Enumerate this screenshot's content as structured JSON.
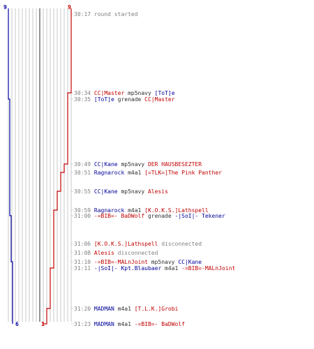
{
  "colors": {
    "blue_team": "#0000a0",
    "red_team": "#c00000",
    "grid": "#c8c8c8",
    "time": "#808080"
  },
  "counts": {
    "blue_start": "9",
    "red_start": "9",
    "blue_end": "6",
    "red_end": "1"
  },
  "events": [
    {
      "time": "30:17",
      "parts": [
        {
          "t": "round started",
          "c": "time"
        }
      ]
    },
    {
      "time": "30:34",
      "parts": [
        {
          "t": "CC|Master",
          "c": "red"
        },
        {
          "t": " mp5navy ",
          "c": "plain"
        },
        {
          "t": "[ToT]e",
          "c": "blue"
        }
      ]
    },
    {
      "time": "30:35",
      "parts": [
        {
          "t": "[ToT]e",
          "c": "blue"
        },
        {
          "t": " grenade ",
          "c": "plain"
        },
        {
          "t": "CC|Master",
          "c": "red"
        }
      ]
    },
    {
      "time": "30:49",
      "parts": [
        {
          "t": "CC|Kane",
          "c": "blue"
        },
        {
          "t": " mp5navy ",
          "c": "plain"
        },
        {
          "t": "DER HAUSBESEZTER",
          "c": "red"
        }
      ]
    },
    {
      "time": "30:51",
      "parts": [
        {
          "t": "Ragnarock",
          "c": "blue"
        },
        {
          "t": " m4a1 ",
          "c": "plain"
        },
        {
          "t": "[=TLK=]The Pink Panther",
          "c": "red"
        }
      ]
    },
    {
      "time": "30:55",
      "parts": [
        {
          "t": "CC|Kane",
          "c": "blue"
        },
        {
          "t": " mp5navy ",
          "c": "plain"
        },
        {
          "t": "Alesis",
          "c": "red"
        }
      ]
    },
    {
      "time": "30:59",
      "parts": [
        {
          "t": "Ragnarock",
          "c": "blue"
        },
        {
          "t": " m4a1 ",
          "c": "plain"
        },
        {
          "t": "[K.O.K.S.]Lathspell",
          "c": "red"
        }
      ]
    },
    {
      "time": "31:00",
      "parts": [
        {
          "t": "-=BIB=- BaDWolf",
          "c": "red"
        },
        {
          "t": " grenade ",
          "c": "plain"
        },
        {
          "t": "-|SoI|- Tekener",
          "c": "blue"
        }
      ]
    },
    {
      "time": "31:06",
      "parts": [
        {
          "t": "[K.O.K.S.]Lathspell",
          "c": "red"
        },
        {
          "t": " disconnected",
          "c": "time"
        }
      ]
    },
    {
      "time": "31:08",
      "parts": [
        {
          "t": "Alesis",
          "c": "red"
        },
        {
          "t": " disconnected",
          "c": "time"
        }
      ]
    },
    {
      "time": "31:10",
      "parts": [
        {
          "t": "-=BIB=-MALnJoint",
          "c": "red"
        },
        {
          "t": " mp5navy ",
          "c": "plain"
        },
        {
          "t": "CC|Kane",
          "c": "blue"
        }
      ]
    },
    {
      "time": "31:11",
      "parts": [
        {
          "t": "-|SoI|- Kpt.Blaubaer",
          "c": "blue"
        },
        {
          "t": " m4a1 ",
          "c": "plain"
        },
        {
          "t": "-=BIB=-MALnJoint",
          "c": "red"
        }
      ]
    },
    {
      "time": "31:20",
      "parts": [
        {
          "t": "MADMAN",
          "c": "blue"
        },
        {
          "t": " m4a1 ",
          "c": "plain"
        },
        {
          "t": "[T.L.K.]Grobi",
          "c": "red"
        }
      ]
    },
    {
      "time": "31:23",
      "parts": [
        {
          "t": "MADMAN",
          "c": "blue"
        },
        {
          "t": " m4a1 ",
          "c": "plain"
        },
        {
          "t": "-=BIB=- BaDWolf",
          "c": "red"
        }
      ]
    }
  ],
  "alive": {
    "blue": [
      9,
      9,
      8,
      8,
      8,
      8,
      8,
      7,
      7,
      7,
      6,
      6,
      6,
      6
    ],
    "red": [
      9,
      8,
      8,
      7,
      6,
      5,
      4,
      4,
      4,
      4,
      4,
      3,
      2,
      1
    ]
  }
}
